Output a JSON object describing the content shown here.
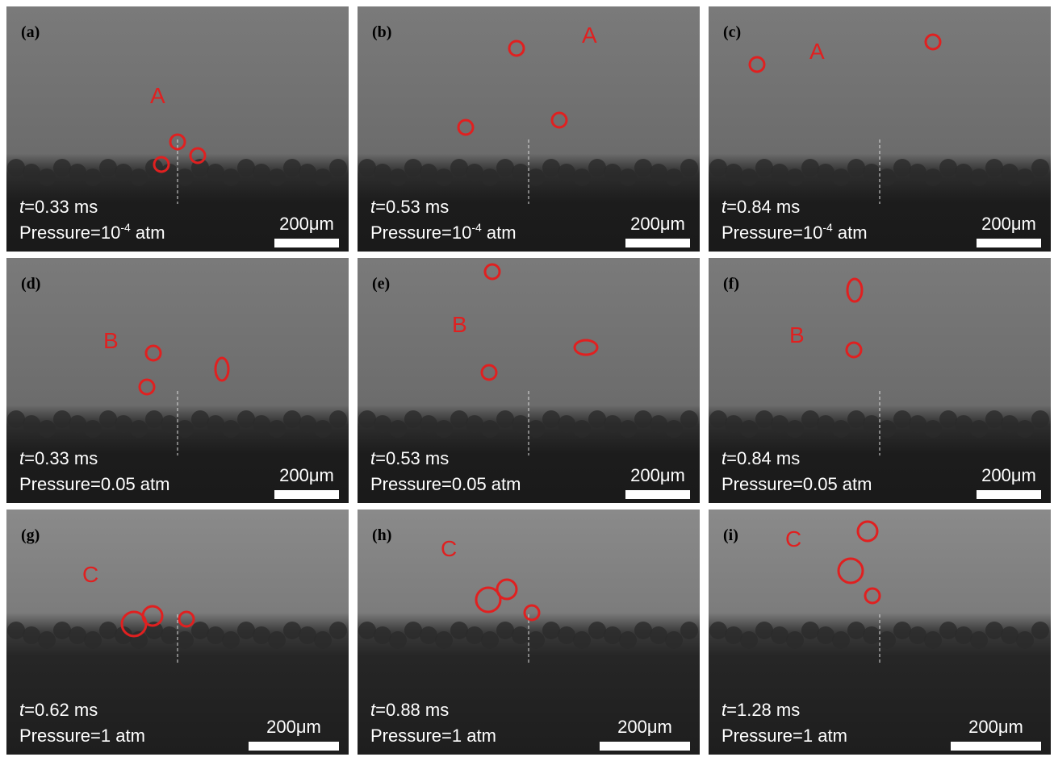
{
  "panels": [
    {
      "label": "(a)",
      "marker": "A",
      "time_var": "t",
      "time": "=0.33 ms",
      "pressure": "Pressure=10",
      "pressure_exp": "-4",
      "pressure_unit": " atm",
      "scale": "200μm"
    },
    {
      "label": "(b)",
      "marker": "A",
      "time_var": "t",
      "time": "=0.53 ms",
      "pressure": "Pressure=10",
      "pressure_exp": "-4",
      "pressure_unit": " atm",
      "scale": "200μm"
    },
    {
      "label": "(c)",
      "marker": "A",
      "time_var": "t",
      "time": "=0.84 ms",
      "pressure": "Pressure=10",
      "pressure_exp": "-4",
      "pressure_unit": " atm",
      "scale": "200μm"
    },
    {
      "label": "(d)",
      "marker": "B",
      "time_var": "t",
      "time": "=0.33 ms",
      "pressure": "Pressure=0.05 atm",
      "scale": "200μm"
    },
    {
      "label": "(e)",
      "marker": "B",
      "time_var": "t",
      "time": "=0.53 ms",
      "pressure": "Pressure=0.05 atm",
      "scale": "200μm"
    },
    {
      "label": "(f)",
      "marker": "B",
      "time_var": "t",
      "time": "=0.84 ms",
      "pressure": "Pressure=0.05 atm",
      "scale": "200μm"
    },
    {
      "label": "(g)",
      "marker": "C",
      "time_var": "t",
      "time": "=0.62 ms",
      "pressure": "Pressure=1 atm",
      "scale": "200μm"
    },
    {
      "label": "(h)",
      "marker": "C",
      "time_var": "t",
      "time": "=0.88 ms",
      "pressure": "Pressure=1 atm",
      "scale": "200μm"
    },
    {
      "label": "(i)",
      "marker": "C",
      "time_var": "t",
      "time": "=1.28 ms",
      "pressure": "Pressure=1 atm",
      "scale": "200μm"
    }
  ]
}
